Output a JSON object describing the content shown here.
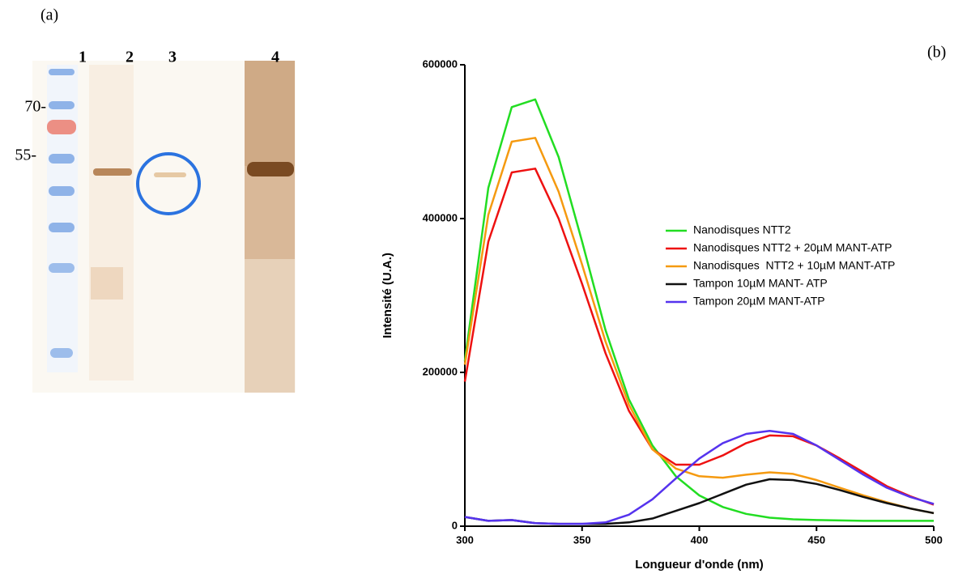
{
  "gel": {
    "panel_label": "(a)",
    "lanes": [
      "1",
      "2",
      "3",
      "4"
    ],
    "markers": [
      "70-",
      "55-"
    ]
  },
  "chart_data": {
    "type": "line",
    "panel_label": "(b)",
    "x_label": "Longueur d'onde (nm)",
    "y_label": "Intensité (U.A.)",
    "x": [
      300,
      310,
      320,
      330,
      340,
      350,
      360,
      370,
      380,
      390,
      400,
      410,
      420,
      430,
      440,
      450,
      460,
      470,
      480,
      490,
      500
    ],
    "xlim": [
      300,
      500
    ],
    "xticks": [
      300,
      350,
      400,
      450,
      500
    ],
    "ylim": [
      0,
      600000
    ],
    "yticks": [
      0,
      200000,
      400000,
      600000
    ],
    "grid": false,
    "legend": "right",
    "series": [
      {
        "name": "Nanodisques NTT2",
        "color": "#22dd22",
        "values": [
          215000,
          440000,
          545000,
          555000,
          480000,
          370000,
          255000,
          165000,
          105000,
          65000,
          40000,
          25000,
          16000,
          11000,
          9000,
          8000,
          7500,
          7000,
          7000,
          7000,
          7000
        ]
      },
      {
        "name": "Nanodisques NTT2 + 20µM MANT-ATP",
        "color": "#ee1111",
        "values": [
          188000,
          370000,
          460000,
          465000,
          400000,
          315000,
          225000,
          150000,
          100000,
          80000,
          80000,
          92000,
          108000,
          118000,
          117000,
          105000,
          88000,
          70000,
          52000,
          39000,
          28000
        ]
      },
      {
        "name": "Nanodisques  NTT2 + 10µM MANT-ATP",
        "color": "#f59a10",
        "values": [
          210000,
          405000,
          500000,
          505000,
          435000,
          340000,
          240000,
          158000,
          100000,
          75000,
          65000,
          63000,
          67000,
          70000,
          68000,
          60000,
          50000,
          40000,
          31000,
          23000,
          17000
        ]
      },
      {
        "name": "Tampon 10µM MANT- ATP",
        "color": "#111111",
        "values": [
          12000,
          7000,
          8000,
          4000,
          3000,
          3000,
          3000,
          5000,
          10000,
          20000,
          30000,
          42000,
          54000,
          61000,
          60000,
          55000,
          47000,
          38000,
          30000,
          23000,
          17000
        ]
      },
      {
        "name": "Tampon 20µM MANT-ATP",
        "color": "#5533ee",
        "values": [
          12000,
          7000,
          8000,
          4000,
          3000,
          3000,
          5000,
          15000,
          35000,
          62000,
          88000,
          108000,
          120000,
          124000,
          120000,
          105000,
          86000,
          67000,
          50000,
          38000,
          29000
        ]
      }
    ]
  }
}
